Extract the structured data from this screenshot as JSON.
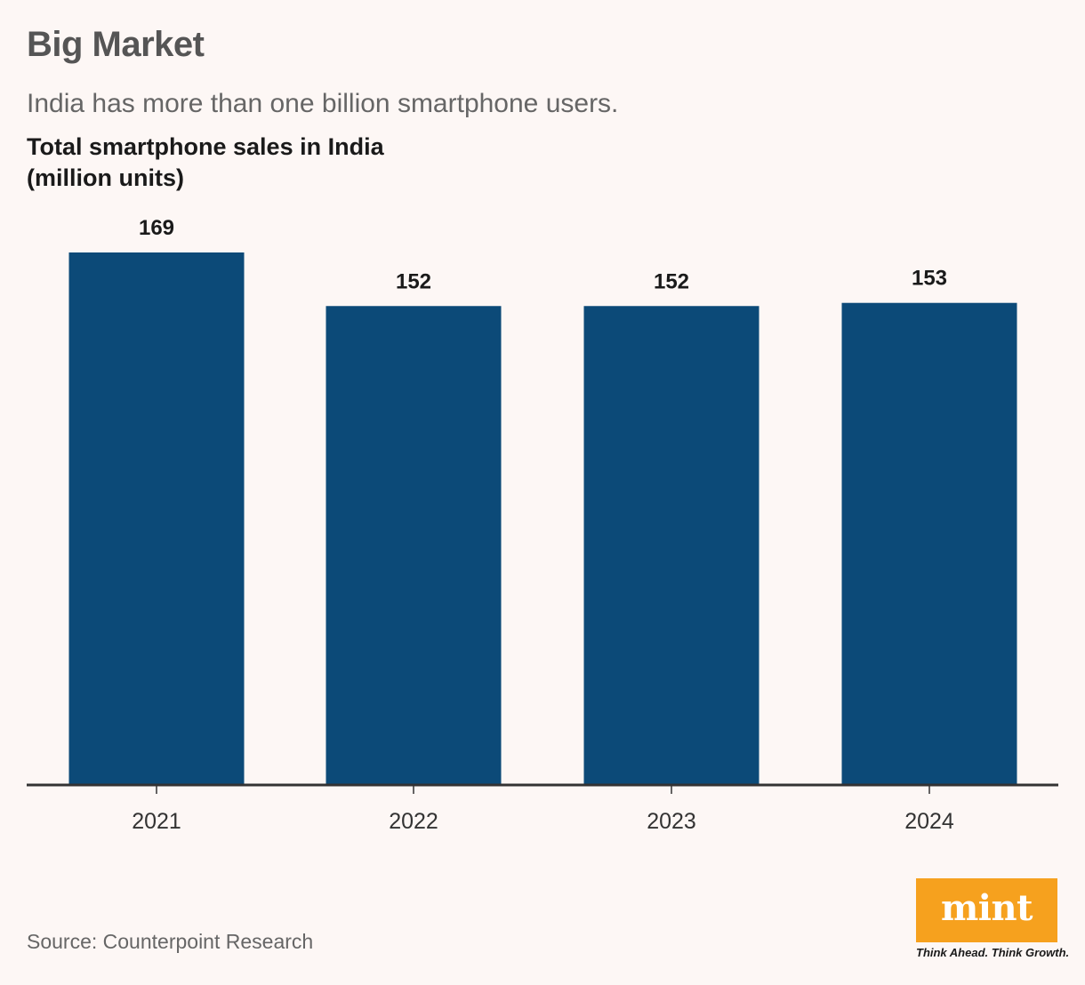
{
  "header": {
    "title": "Big Market",
    "subtitle": "India has more than one billion smartphone users.",
    "chart_title_line1": "Total smartphone sales in India",
    "chart_title_line2": "(million units)"
  },
  "chart_data": {
    "type": "bar",
    "categories": [
      "2021",
      "2022",
      "2023",
      "2024"
    ],
    "values": [
      169,
      152,
      152,
      153
    ],
    "value_labels": [
      "169",
      "152",
      "152",
      "153"
    ],
    "title": "Total smartphone sales in India (million units)",
    "ylim": [
      0,
      169
    ],
    "grid": false,
    "bar_color": "#0c4a78",
    "axis_color": "#333333"
  },
  "footer": {
    "source": "Source: Counterpoint Research",
    "logo": "mint",
    "tagline": "Think Ahead. Think Growth.",
    "logo_color": "#f6a11e"
  }
}
